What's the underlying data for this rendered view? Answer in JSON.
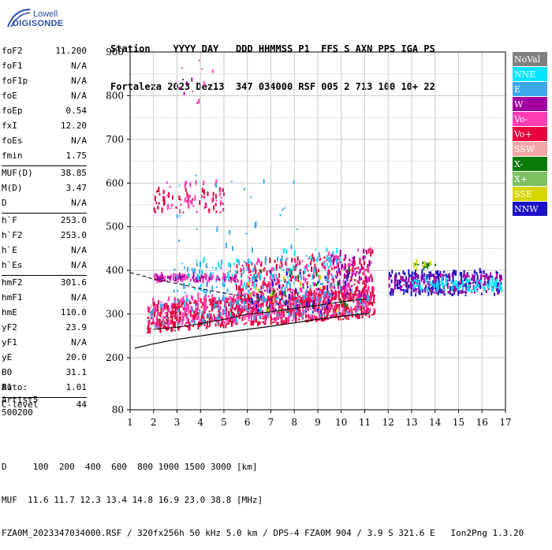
{
  "logo": {
    "brand": "Lowell",
    "product": "DIGISONDE"
  },
  "header": {
    "line1": "Station    YYYY DAY   DDD HHMMSS P1  FFS S AXN PPS IGA PS",
    "line2": "Fortaleza 2023 Dez13  347 034000 RSF 005 2 713 100 10+ 22"
  },
  "params": [
    {
      "label": "foF2",
      "value": "11.200"
    },
    {
      "label": "foF1",
      "value": "N/A"
    },
    {
      "label": "foF1p",
      "value": "N/A"
    },
    {
      "label": "foE",
      "value": "N/A"
    },
    {
      "label": "foEp",
      "value": "0.54"
    },
    {
      "label": "fxI",
      "value": "12.20"
    },
    {
      "label": "foEs",
      "value": "N/A"
    },
    {
      "label": "fmin",
      "value": "1.75"
    },
    {
      "label": "MUF(D)",
      "value": "38.85"
    },
    {
      "label": "M(D)",
      "value": "3.47"
    },
    {
      "label": "D",
      "value": "N/A"
    },
    {
      "label": "h`F",
      "value": "253.0"
    },
    {
      "label": "h`F2",
      "value": "253.0"
    },
    {
      "label": "h`E",
      "value": "N/A"
    },
    {
      "label": "h`Es",
      "value": "N/A"
    },
    {
      "label": "hmF2",
      "value": "301.6"
    },
    {
      "label": "hmF1",
      "value": "N/A"
    },
    {
      "label": "hmE",
      "value": "110.0"
    },
    {
      "label": "yF2",
      "value": "23.9"
    },
    {
      "label": "yF1",
      "value": "N/A"
    },
    {
      "label": "yE",
      "value": "20.0"
    },
    {
      "label": "B0",
      "value": "31.1"
    },
    {
      "label": "B1",
      "value": "1.01"
    },
    {
      "label": "C-level",
      "value": "44"
    }
  ],
  "auto": {
    "line1": "Auto:",
    "line2": "Artist5",
    "line3": "500200"
  },
  "legend": [
    {
      "label": "NoVal",
      "color": "#808080"
    },
    {
      "label": "NNE",
      "color": "#00e5ff"
    },
    {
      "label": "E",
      "color": "#3ba8ee"
    },
    {
      "label": "W",
      "color": "#a000a0"
    },
    {
      "label": "Vo-",
      "color": "#ff3cb4"
    },
    {
      "label": "Vo+",
      "color": "#e8003c"
    },
    {
      "label": "SSW",
      "color": "#f4a6a6"
    },
    {
      "label": "X-",
      "color": "#0a7a0a"
    },
    {
      "label": "X+",
      "color": "#7cc060"
    },
    {
      "label": "SSE",
      "color": "#d6d600"
    },
    {
      "label": "NNW",
      "color": "#1c10c8"
    }
  ],
  "bottom": {
    "line1": "D     100  200  400  600  800 1000 1500 3000 [km]",
    "line2": "MUF  11.6 11.7 12.3 13.4 14.8 16.9 23.0 38.8 [MHz]",
    "line3": "FZA0M_2023347034000.RSF / 320fx256h 50 kHz 5.0 km / DPS-4 FZA0M 904 / 3.9 S 321.6 E   Ion2Png 1.3.20"
  },
  "chart_data": {
    "type": "scatter",
    "xlim": [
      1,
      17
    ],
    "ylim": [
      80,
      900
    ],
    "xticks": [
      1,
      2,
      3,
      4,
      5,
      6,
      7,
      8,
      9,
      10,
      11,
      12,
      13,
      14,
      15,
      16,
      17
    ],
    "yticks": [
      80,
      200,
      300,
      400,
      500,
      600,
      700,
      800,
      900
    ],
    "ytick_labels": [
      "80",
      "200",
      "300",
      "400",
      "500",
      "600",
      "700",
      "800",
      "900"
    ],
    "grid": true,
    "clusters": [
      {
        "x0": 1.7,
        "x1": 11.4,
        "y0": 255,
        "y1": 320,
        "color": "#e8003c",
        "n": 900
      },
      {
        "x0": 1.7,
        "x1": 11.4,
        "y0": 260,
        "y1": 330,
        "color": "#ff3cb4",
        "n": 350
      },
      {
        "x0": 1.8,
        "x1": 11.2,
        "y0": 265,
        "y1": 320,
        "color": "#3ba8ee",
        "n": 120
      },
      {
        "x0": 5.5,
        "x1": 11.3,
        "y0": 300,
        "y1": 410,
        "color": "#e8003c",
        "n": 260
      },
      {
        "x0": 5.5,
        "x1": 11.3,
        "y0": 300,
        "y1": 420,
        "color": "#ff3cb4",
        "n": 120
      },
      {
        "x0": 2.0,
        "x1": 5.5,
        "y0": 370,
        "y1": 385,
        "color": "#ff3cb4",
        "n": 80
      },
      {
        "x0": 2.0,
        "x1": 5.5,
        "y0": 372,
        "y1": 385,
        "color": "#a000a0",
        "n": 50
      },
      {
        "x0": 2.8,
        "x1": 10.0,
        "y0": 305,
        "y1": 405,
        "color": "#3ba8ee",
        "n": 160
      },
      {
        "x0": 3.0,
        "x1": 10.0,
        "y0": 340,
        "y1": 420,
        "color": "#00e5ff",
        "n": 60
      },
      {
        "x0": 9.5,
        "x1": 11.2,
        "y0": 330,
        "y1": 440,
        "color": "#a000a0",
        "n": 60
      },
      {
        "x0": 6.0,
        "x1": 10.5,
        "y0": 300,
        "y1": 400,
        "color": "#1c10c8",
        "n": 60
      },
      {
        "x0": 6.0,
        "x1": 10.5,
        "y0": 300,
        "y1": 400,
        "color": "#0a7a0a",
        "n": 20
      },
      {
        "x0": 6.0,
        "x1": 10.5,
        "y0": 300,
        "y1": 380,
        "color": "#d6d600",
        "n": 15
      },
      {
        "x0": 12.0,
        "x1": 16.8,
        "y0": 340,
        "y1": 395,
        "color": "#1c10c8",
        "n": 220
      },
      {
        "x0": 12.0,
        "x1": 16.8,
        "y0": 345,
        "y1": 385,
        "color": "#a000a0",
        "n": 140
      },
      {
        "x0": 13.0,
        "x1": 16.8,
        "y0": 350,
        "y1": 375,
        "color": "#00e5ff",
        "n": 90
      },
      {
        "x0": 13.0,
        "x1": 14.0,
        "y0": 400,
        "y1": 415,
        "color": "#0a7a0a",
        "n": 10
      },
      {
        "x0": 13.0,
        "x1": 14.0,
        "y0": 400,
        "y1": 415,
        "color": "#d6d600",
        "n": 8
      },
      {
        "x0": 2.0,
        "x1": 5.0,
        "y0": 530,
        "y1": 580,
        "color": "#e8003c",
        "n": 50
      },
      {
        "x0": 2.5,
        "x1": 5.0,
        "y0": 530,
        "y1": 600,
        "color": "#ff3cb4",
        "n": 40
      },
      {
        "x0": 2.8,
        "x1": 8.5,
        "y0": 440,
        "y1": 640,
        "color": "#3ba8ee",
        "n": 25
      },
      {
        "x0": 3.0,
        "x1": 4.5,
        "y0": 780,
        "y1": 880,
        "color": "#ff3cb4",
        "n": 8
      },
      {
        "x0": 3.0,
        "x1": 4.5,
        "y0": 800,
        "y1": 850,
        "color": "#a000a0",
        "n": 5
      }
    ],
    "profile_line": [
      [
        1.2,
        222
      ],
      [
        2,
        232
      ],
      [
        3,
        242
      ],
      [
        4,
        250
      ],
      [
        5,
        258
      ],
      [
        6,
        265
      ],
      [
        7,
        272
      ],
      [
        8,
        280
      ],
      [
        9,
        288
      ],
      [
        10,
        295
      ],
      [
        11.2,
        302
      ]
    ],
    "dashed_line": [
      [
        1,
        395
      ],
      [
        1.5,
        388
      ],
      [
        2,
        380
      ],
      [
        3,
        370
      ],
      [
        4,
        358
      ],
      [
        5,
        348
      ],
      [
        6,
        340
      ]
    ],
    "trace_line": [
      [
        2,
        265
      ],
      [
        3,
        270
      ],
      [
        4,
        278
      ],
      [
        5,
        288
      ],
      [
        6,
        300
      ],
      [
        7,
        305
      ],
      [
        8,
        313
      ],
      [
        9,
        320
      ],
      [
        10,
        328
      ],
      [
        11,
        335
      ]
    ]
  }
}
